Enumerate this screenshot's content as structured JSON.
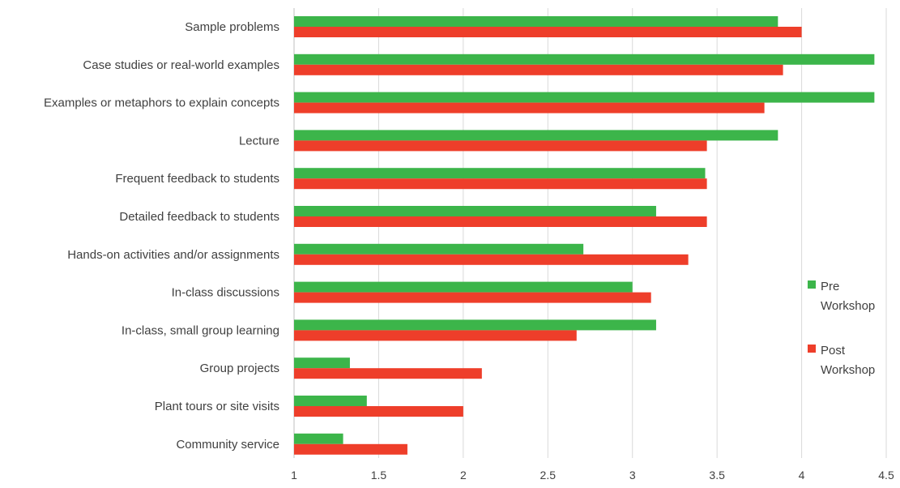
{
  "chart_data": {
    "type": "bar",
    "orientation": "horizontal",
    "categories": [
      "Sample problems",
      "Case studies or real-world examples",
      "Examples or metaphors to explain concepts",
      "Lecture",
      "Frequent feedback to students",
      "Detailed feedback to students",
      "Hands-on activities and/or assignments",
      "In-class discussions",
      "In-class, small group learning",
      "Group projects",
      "Plant tours or site visits",
      "Community service"
    ],
    "series": [
      {
        "name": "Pre Workshop",
        "legend_lines": [
          "Pre",
          "Workshop"
        ],
        "color": "#3cb54a",
        "values": [
          3.86,
          4.43,
          4.43,
          3.86,
          3.43,
          3.14,
          2.71,
          3.0,
          3.14,
          1.33,
          1.43,
          1.29
        ]
      },
      {
        "name": "Post Workshop",
        "legend_lines": [
          "Post",
          "Workshop"
        ],
        "color": "#ee3e2a",
        "values": [
          4.0,
          3.89,
          3.78,
          3.44,
          3.44,
          3.44,
          3.33,
          3.11,
          2.67,
          2.11,
          2.0,
          1.67
        ]
      }
    ],
    "xlim": [
      1,
      4.5
    ],
    "xticks": [
      "1",
      "1.5",
      "2",
      "2.5",
      "3",
      "3.5",
      "4",
      "4.5"
    ],
    "grid": true,
    "legend_position": "right"
  }
}
